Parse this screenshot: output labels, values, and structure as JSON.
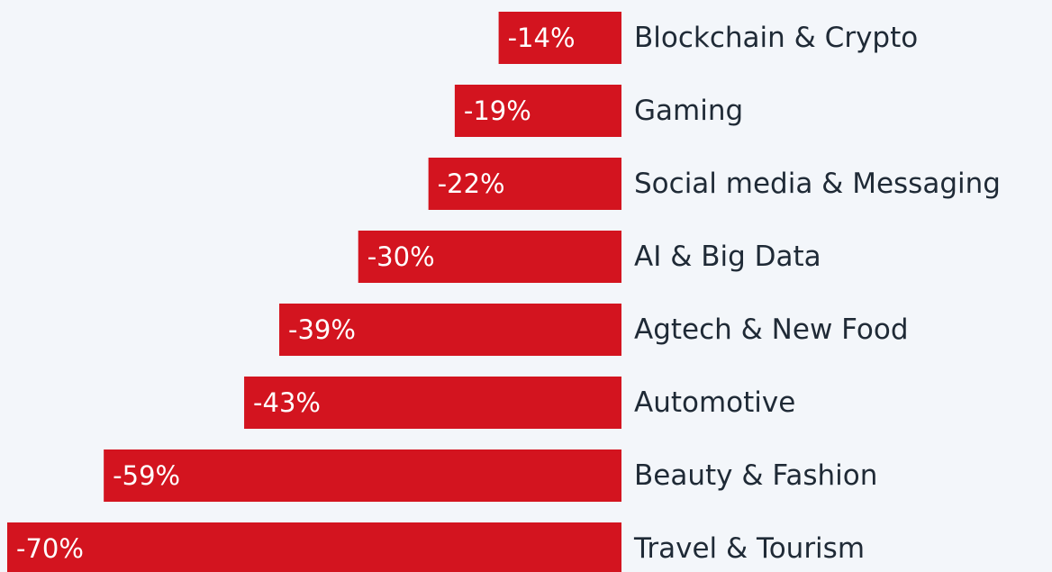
{
  "chart_data": {
    "type": "bar",
    "orientation": "horizontal",
    "categories": [
      "Blockchain & Crypto",
      "Gaming",
      "Social media & Messaging",
      "AI & Big Data",
      "Agtech & New Food",
      "Automotive",
      "Beauty & Fashion",
      "Travel & Tourism"
    ],
    "values": [
      -14,
      -19,
      -22,
      -30,
      -39,
      -43,
      -59,
      -70
    ],
    "value_labels": [
      "-14%",
      "-19%",
      "-22%",
      "-30%",
      "-39%",
      "-43%",
      "-59%",
      "-70%"
    ],
    "color": "#d3141f"
  }
}
